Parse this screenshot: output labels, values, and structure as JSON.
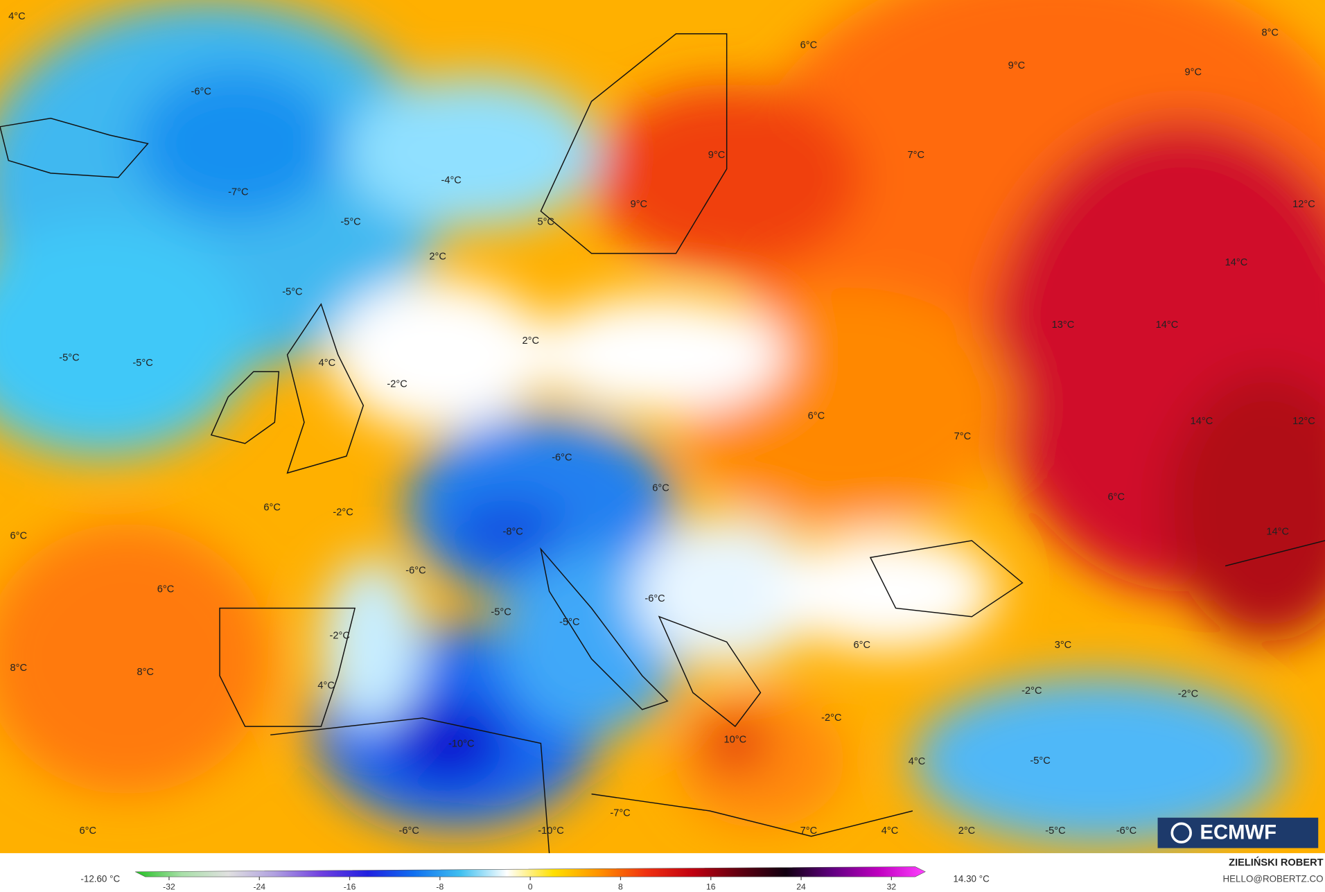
{
  "map": {
    "labels": [
      "4°C",
      "-6°C",
      "-7°C",
      "-4°C",
      "-5°C",
      "-5°C",
      "-5°C",
      "-5°C",
      "4°C",
      "-2°C",
      "2°C",
      "5°C",
      "9°C",
      "9°C",
      "6°C",
      "9°C",
      "8°C",
      "9°C",
      "7°C",
      "12°C",
      "14°C",
      "13°C",
      "14°C",
      "14°C",
      "12°C",
      "2°C",
      "6°C",
      "7°C",
      "-6°C",
      "6°C",
      "6°C",
      "14°C",
      "6°C",
      "-2°C",
      "6°C",
      "-8°C",
      "-6°C",
      "6°C",
      "-5°C",
      "-5°C",
      "-6°C",
      "-2°C",
      "6°C",
      "3°C",
      "8°C",
      "8°C",
      "4°C",
      "-2°C",
      "-2°C",
      "-2°C",
      "-10°C",
      "10°C",
      "4°C",
      "-5°C",
      "6°C",
      "-6°C",
      "-10°C",
      "-7°C",
      "7°C",
      "4°C",
      "2°C",
      "-5°C",
      "-6°C"
    ],
    "logo": "ECMWF"
  },
  "colorbar": {
    "min_label": "-12.60 °C",
    "max_label": "14.30 °C",
    "lim": [
      -35,
      35
    ],
    "ticks": [
      -32,
      -24,
      -16,
      -8,
      0,
      8,
      16,
      24,
      32
    ],
    "colors": [
      "#22c022",
      "#a8e0a8",
      "#e0e0e0",
      "#b0a0e0",
      "#7040e0",
      "#2020e0",
      "#1070f0",
      "#40c0f0",
      "#ffffff",
      "#ffe000",
      "#ff9000",
      "#f03010",
      "#c00010",
      "#600010",
      "#100010",
      "#600080",
      "#c000c0",
      "#ff40ff"
    ]
  },
  "credit": {
    "author": "ZIELIŃSKI ROBERT",
    "contact": "HELLO@ROBERTZ.CO"
  }
}
